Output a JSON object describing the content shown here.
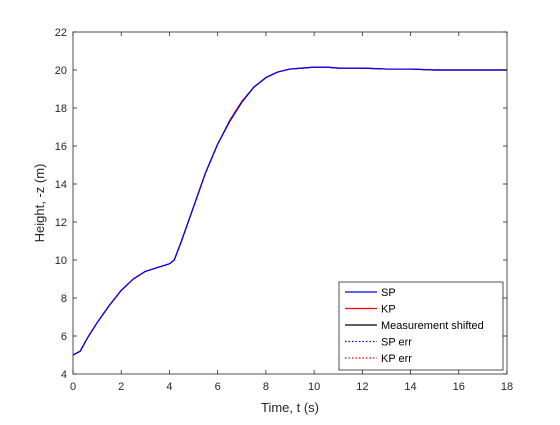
{
  "chart_data": {
    "type": "line",
    "title": "",
    "xlabel": "Time, t (s)",
    "ylabel": "Height, -z (m)",
    "xlim": [
      0,
      18
    ],
    "ylim": [
      4,
      22
    ],
    "xticks": [
      0,
      2,
      4,
      6,
      8,
      10,
      12,
      14,
      16,
      18
    ],
    "yticks": [
      4,
      6,
      8,
      10,
      12,
      14,
      16,
      18,
      20,
      22
    ],
    "grid": false,
    "legend_position": "bottom-right",
    "series": [
      {
        "name": "SP",
        "color": "#0000ff",
        "line_style": "solid",
        "x": [
          0,
          0.3,
          0.6,
          1.0,
          1.5,
          2.0,
          2.5,
          3.0,
          3.5,
          4.0,
          4.2,
          4.5,
          5.0,
          5.5,
          6.0,
          6.5,
          7.0,
          7.5,
          8.0,
          8.5,
          9.0,
          9.5,
          10.0,
          10.5,
          11.0,
          12.0,
          13.0,
          14.0,
          15.0,
          16.0,
          17.0,
          18.0
        ],
        "y": [
          5.0,
          5.2,
          5.9,
          6.7,
          7.6,
          8.4,
          9.0,
          9.4,
          9.6,
          9.8,
          10.0,
          11.0,
          12.8,
          14.6,
          16.1,
          17.3,
          18.3,
          19.1,
          19.6,
          19.9,
          20.05,
          20.1,
          20.15,
          20.15,
          20.1,
          20.1,
          20.05,
          20.05,
          20.0,
          20.0,
          20.0,
          20.0
        ]
      },
      {
        "name": "KP",
        "color": "#ff0000",
        "line_style": "solid",
        "x": [
          0,
          0.3,
          0.6,
          1.0,
          1.5,
          2.0,
          2.5,
          3.0,
          3.5,
          4.0,
          4.2,
          4.5,
          5.0,
          5.5,
          6.0,
          6.5,
          7.0,
          7.5,
          8.0,
          8.5,
          9.0,
          9.5,
          10.0,
          10.5,
          11.0,
          12.0,
          13.0,
          14.0,
          15.0,
          16.0,
          17.0,
          18.0
        ],
        "y": [
          5.0,
          5.2,
          5.9,
          6.7,
          7.6,
          8.4,
          9.0,
          9.4,
          9.6,
          9.8,
          10.0,
          11.0,
          12.8,
          14.6,
          16.1,
          17.35,
          18.35,
          19.1,
          19.6,
          19.9,
          20.05,
          20.1,
          20.15,
          20.15,
          20.1,
          20.1,
          20.05,
          20.05,
          20.0,
          20.0,
          20.0,
          20.0
        ]
      },
      {
        "name": "Measurement shifted",
        "color": "#000000",
        "line_style": "solid",
        "x": [
          0,
          0.3,
          0.6,
          1.0,
          1.5,
          2.0,
          2.5,
          3.0,
          3.5,
          4.0,
          4.2,
          4.5,
          5.0,
          5.5,
          6.0,
          6.5,
          7.0,
          7.5,
          8.0,
          8.5,
          9.0,
          9.5,
          10.0,
          10.5,
          11.0,
          12.0,
          13.0,
          14.0,
          15.0,
          16.0,
          17.0,
          18.0
        ],
        "y": [
          5.0,
          5.2,
          5.9,
          6.7,
          7.6,
          8.4,
          9.0,
          9.4,
          9.6,
          9.8,
          10.0,
          11.0,
          12.8,
          14.6,
          16.1,
          17.3,
          18.3,
          19.1,
          19.6,
          19.9,
          20.05,
          20.1,
          20.15,
          20.15,
          20.1,
          20.1,
          20.05,
          20.05,
          20.0,
          20.0,
          20.0,
          20.0
        ]
      },
      {
        "name": "SP err",
        "color": "#0000ff",
        "line_style": "dotted",
        "x": [],
        "y": []
      },
      {
        "name": "KP err",
        "color": "#ff0000",
        "line_style": "dotted",
        "x": [],
        "y": []
      }
    ]
  }
}
